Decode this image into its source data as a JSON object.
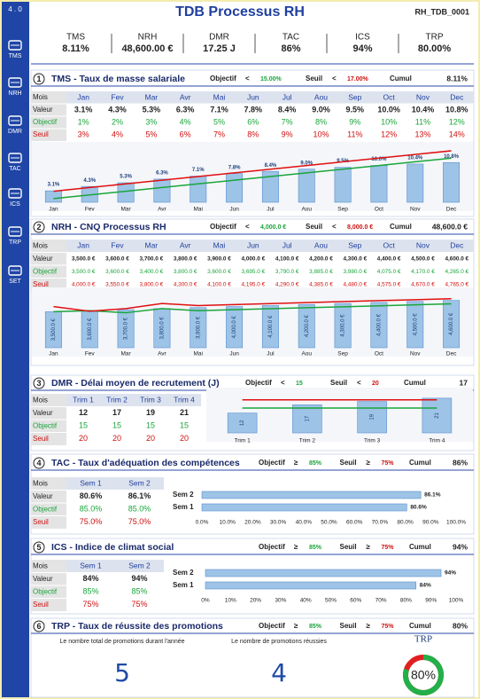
{
  "sidebar": {
    "version": "4 . 0",
    "items": [
      "TMS",
      "NRH",
      "DMR",
      "TAC",
      "ICS",
      "TRP",
      "SET"
    ]
  },
  "header": {
    "title": "TDB Processus RH",
    "code": "RH_TDB_0001"
  },
  "kpis": [
    {
      "label": "TMS",
      "value": "8.11%"
    },
    {
      "label": "NRH",
      "value": "48,600.00 €"
    },
    {
      "label": "DMR",
      "value": "17.25 J"
    },
    {
      "label": "TAC",
      "value": "86%"
    },
    {
      "label": "ICS",
      "value": "94%"
    },
    {
      "label": "TRP",
      "value": "80.00%"
    }
  ],
  "sections": [
    {
      "number": "1",
      "title": "TMS - Taux de masse salariale",
      "objectif_label": "Objectif",
      "objectif_op": "<",
      "objectif_value": "15.00%",
      "seuil_label": "Seuil",
      "seuil_op": "<",
      "seuil_value": "17.00%",
      "cumul_label": "Cumul",
      "cumul_value": "8.11%",
      "table_corner": "Mois"
    },
    {
      "number": "2",
      "title": "NRH - CNQ Processus RH",
      "objectif_label": "Objectif",
      "objectif_op": "<",
      "objectif_value": "4,000.0 €",
      "seuil_label": "Seuil",
      "seuil_op": "<",
      "seuil_value": "8,000.0 €",
      "cumul_label": "Cumul",
      "cumul_value": "48,600.0 €",
      "table_corner": "Mois"
    },
    {
      "number": "3",
      "title": "DMR - Délai moyen de recrutement (J)",
      "objectif_label": "Objectif",
      "objectif_op": "<",
      "objectif_value": "15",
      "seuil_label": "Seuil",
      "seuil_op": "<",
      "seuil_value": "20",
      "cumul_label": "Cumul",
      "cumul_value": "17",
      "table_corner": "Mois"
    },
    {
      "number": "4",
      "title": "TAC - Taux d'adéquation des compétences",
      "objectif_label": "Objectif",
      "objectif_op": "≥",
      "objectif_value": "85%",
      "seuil_label": "Seuil",
      "seuil_op": "≥",
      "seuil_value": "75%",
      "cumul_label": "Cumul",
      "cumul_value": "86%",
      "table_corner": "Mois",
      "table_rows": [
        {
          "label": "Objectif",
          "cells": [
            "85.0%",
            "85.0%"
          ]
        },
        {
          "label": "Seuil",
          "cells": [
            "75.0%",
            "75.0%"
          ]
        }
      ]
    },
    {
      "number": "5",
      "title": "ICS - Indice de climat social",
      "objectif_label": "Objectif",
      "objectif_op": "≥",
      "objectif_value": "85%",
      "seuil_label": "Seuil",
      "seuil_op": "≥",
      "seuil_value": "75%",
      "cumul_label": "Cumul",
      "cumul_value": "94%",
      "table_corner": "Mois",
      "table_rows": [
        {
          "label": "Objectif",
          "cells": [
            "85%",
            "85%"
          ]
        },
        {
          "label": "Seuil",
          "cells": [
            "75%",
            "75%"
          ]
        }
      ]
    },
    {
      "number": "6",
      "title": "TRP - Taux de réussite des promotions",
      "objectif_label": "Objectif",
      "objectif_op": "≥",
      "objectif_value": "85%",
      "seuil_label": "Seuil",
      "seuil_op": "≥",
      "seuil_value": "75%",
      "cumul_label": "Cumul",
      "cumul_value": "80%",
      "items": [
        {
          "label": "Le nombre total de promotions durant l'année",
          "value": "5"
        },
        {
          "label": "Le nombre de promotions réussies",
          "value": "4"
        }
      ]
    }
  ],
  "chart_data": [
    {
      "type": "bar_line",
      "categories": [
        "Jan",
        "Fev",
        "Mar",
        "Avr",
        "Mai",
        "Jun",
        "Jul",
        "Aou",
        "Sep",
        "Oct",
        "Nov",
        "Dec"
      ],
      "ylim": [
        0,
        14
      ],
      "series": [
        {
          "name": "Valeur",
          "color": "#9dc3e6",
          "values": [
            3.1,
            4.3,
            5.3,
            6.3,
            7.1,
            7.8,
            8.4,
            9.0,
            9.5,
            10.0,
            10.4,
            10.8
          ],
          "value_labels": [
            "3.1%",
            "4.3%",
            "5.3%",
            "6.3%",
            "7.1%",
            "7.8%",
            "8.4%",
            "9.0%",
            "9.5%",
            "10.0%",
            "10.4%",
            "10.8%"
          ]
        },
        {
          "name": "Objectif",
          "color": "#1aa53a",
          "values": [
            1,
            2,
            3,
            4,
            5,
            6,
            7,
            8,
            9,
            10,
            11,
            12
          ],
          "value_labels": [
            "1%",
            "2%",
            "3%",
            "4%",
            "5%",
            "6%",
            "7%",
            "8%",
            "9%",
            "10%",
            "11%",
            "12%"
          ]
        },
        {
          "name": "Seuil",
          "color": "#e01010",
          "values": [
            3,
            4,
            5,
            6,
            7,
            8,
            9,
            10,
            11,
            12,
            13,
            14
          ],
          "value_labels": [
            "3%",
            "4%",
            "5%",
            "6%",
            "7%",
            "8%",
            "9%",
            "10%",
            "11%",
            "12%",
            "13%",
            "14%"
          ]
        }
      ]
    },
    {
      "type": "bar_line",
      "categories": [
        "Jan",
        "Fev",
        "Mar",
        "Avr",
        "Mai",
        "Jun",
        "Jul",
        "Aou",
        "Sep",
        "Oct",
        "Nov",
        "Dec"
      ],
      "ylim": [
        0,
        5000
      ],
      "series": [
        {
          "name": "Valeur",
          "color": "#9dc3e6",
          "values": [
            3500,
            3600,
            3700,
            3800,
            3900,
            4000,
            4100,
            4200,
            4300,
            4400,
            4500,
            4600
          ],
          "value_labels": [
            "3,500.0 €",
            "3,600.0 €",
            "3,700.0 €",
            "3,800.0 €",
            "3,900.0 €",
            "4,000.0 €",
            "4,100.0 €",
            "4,200.0 €",
            "4,300.0 €",
            "4,400.0 €",
            "4,500.0 €",
            "4,600.0 €"
          ]
        },
        {
          "name": "Objectif",
          "color": "#1aa53a",
          "values": [
            3500,
            3600,
            3400,
            3800,
            3600,
            3695,
            3790,
            3885,
            3980,
            4075,
            4170,
            4265
          ],
          "value_labels": [
            "3,500.0 €",
            "3,600.0 €",
            "3,400.0 €",
            "3,800.0 €",
            "3,600.0 €",
            "3,695.0 €",
            "3,790.0 €",
            "3,885.0 €",
            "3,980.0 €",
            "4,075.0 €",
            "4,170.0 €",
            "4,265.0 €"
          ]
        },
        {
          "name": "Seuil",
          "color": "#e01010",
          "values": [
            4000,
            3550,
            3800,
            4300,
            4100,
            4195,
            4290,
            4385,
            4480,
            4575,
            4670,
            4765
          ],
          "value_labels": [
            "4,000.0 €",
            "3,550.0 €",
            "3,800.0 €",
            "4,300.0 €",
            "4,100.0 €",
            "4,195.0 €",
            "4,290.0 €",
            "4,385.0 €",
            "4,480.0 €",
            "4,575.0 €",
            "4,670.0 €",
            "4,765.0 €"
          ]
        }
      ]
    },
    {
      "type": "bar_line",
      "categories": [
        "Trim 1",
        "Trim 2",
        "Trim 3",
        "Trim 4"
      ],
      "ylim": [
        0,
        22
      ],
      "series": [
        {
          "name": "Valeur",
          "color": "#9dc3e6",
          "values": [
            12,
            17,
            19,
            21
          ]
        },
        {
          "name": "Objectif",
          "color": "#1aa53a",
          "values": [
            15,
            15,
            15,
            15
          ]
        },
        {
          "name": "Seuil",
          "color": "#e01010",
          "values": [
            20,
            20,
            20,
            20
          ]
        }
      ]
    },
    {
      "type": "hbar",
      "categories": [
        "Sem 1",
        "Sem 2"
      ],
      "xlim": [
        0,
        100
      ],
      "xticks": [
        {
          "value": 0,
          "label": "0.0%"
        },
        {
          "value": 10,
          "label": "10.0%"
        },
        {
          "value": 20,
          "label": "20.0%"
        },
        {
          "value": 30,
          "label": "30.0%"
        },
        {
          "value": 40,
          "label": "40.0%"
        },
        {
          "value": 50,
          "label": "50.0%"
        },
        {
          "value": 60,
          "label": "60.0%"
        },
        {
          "value": 70,
          "label": "70.0%"
        },
        {
          "value": 80,
          "label": "80.0%"
        },
        {
          "value": 90,
          "label": "90.0%"
        },
        {
          "value": 100,
          "label": "100.0%"
        }
      ],
      "series": [
        {
          "name": "Valeur",
          "color": "#9dc3e6",
          "values": [
            80.6,
            86.1
          ],
          "value_labels": [
            "80.6%",
            "86.1%"
          ]
        }
      ]
    },
    {
      "type": "hbar",
      "categories": [
        "Sem 1",
        "Sem 2"
      ],
      "xlim": [
        0,
        100
      ],
      "xticks": [
        {
          "value": 0,
          "label": "0%"
        },
        {
          "value": 10,
          "label": "10%"
        },
        {
          "value": 20,
          "label": "20%"
        },
        {
          "value": 30,
          "label": "30%"
        },
        {
          "value": 40,
          "label": "40%"
        },
        {
          "value": 50,
          "label": "50%"
        },
        {
          "value": 60,
          "label": "60%"
        },
        {
          "value": 70,
          "label": "70%"
        },
        {
          "value": 80,
          "label": "80%"
        },
        {
          "value": 90,
          "label": "90%"
        },
        {
          "value": 100,
          "label": "100%"
        }
      ],
      "series": [
        {
          "name": "Valeur",
          "color": "#9dc3e6",
          "values": [
            84,
            94
          ],
          "value_labels": [
            "84%",
            "94%"
          ]
        }
      ]
    },
    {
      "type": "gauge",
      "title": "TRP",
      "value": 80,
      "value_label": "80%",
      "ylim": [
        0,
        100
      ],
      "color": "#22b04a",
      "rest_color": "#e02020"
    }
  ]
}
